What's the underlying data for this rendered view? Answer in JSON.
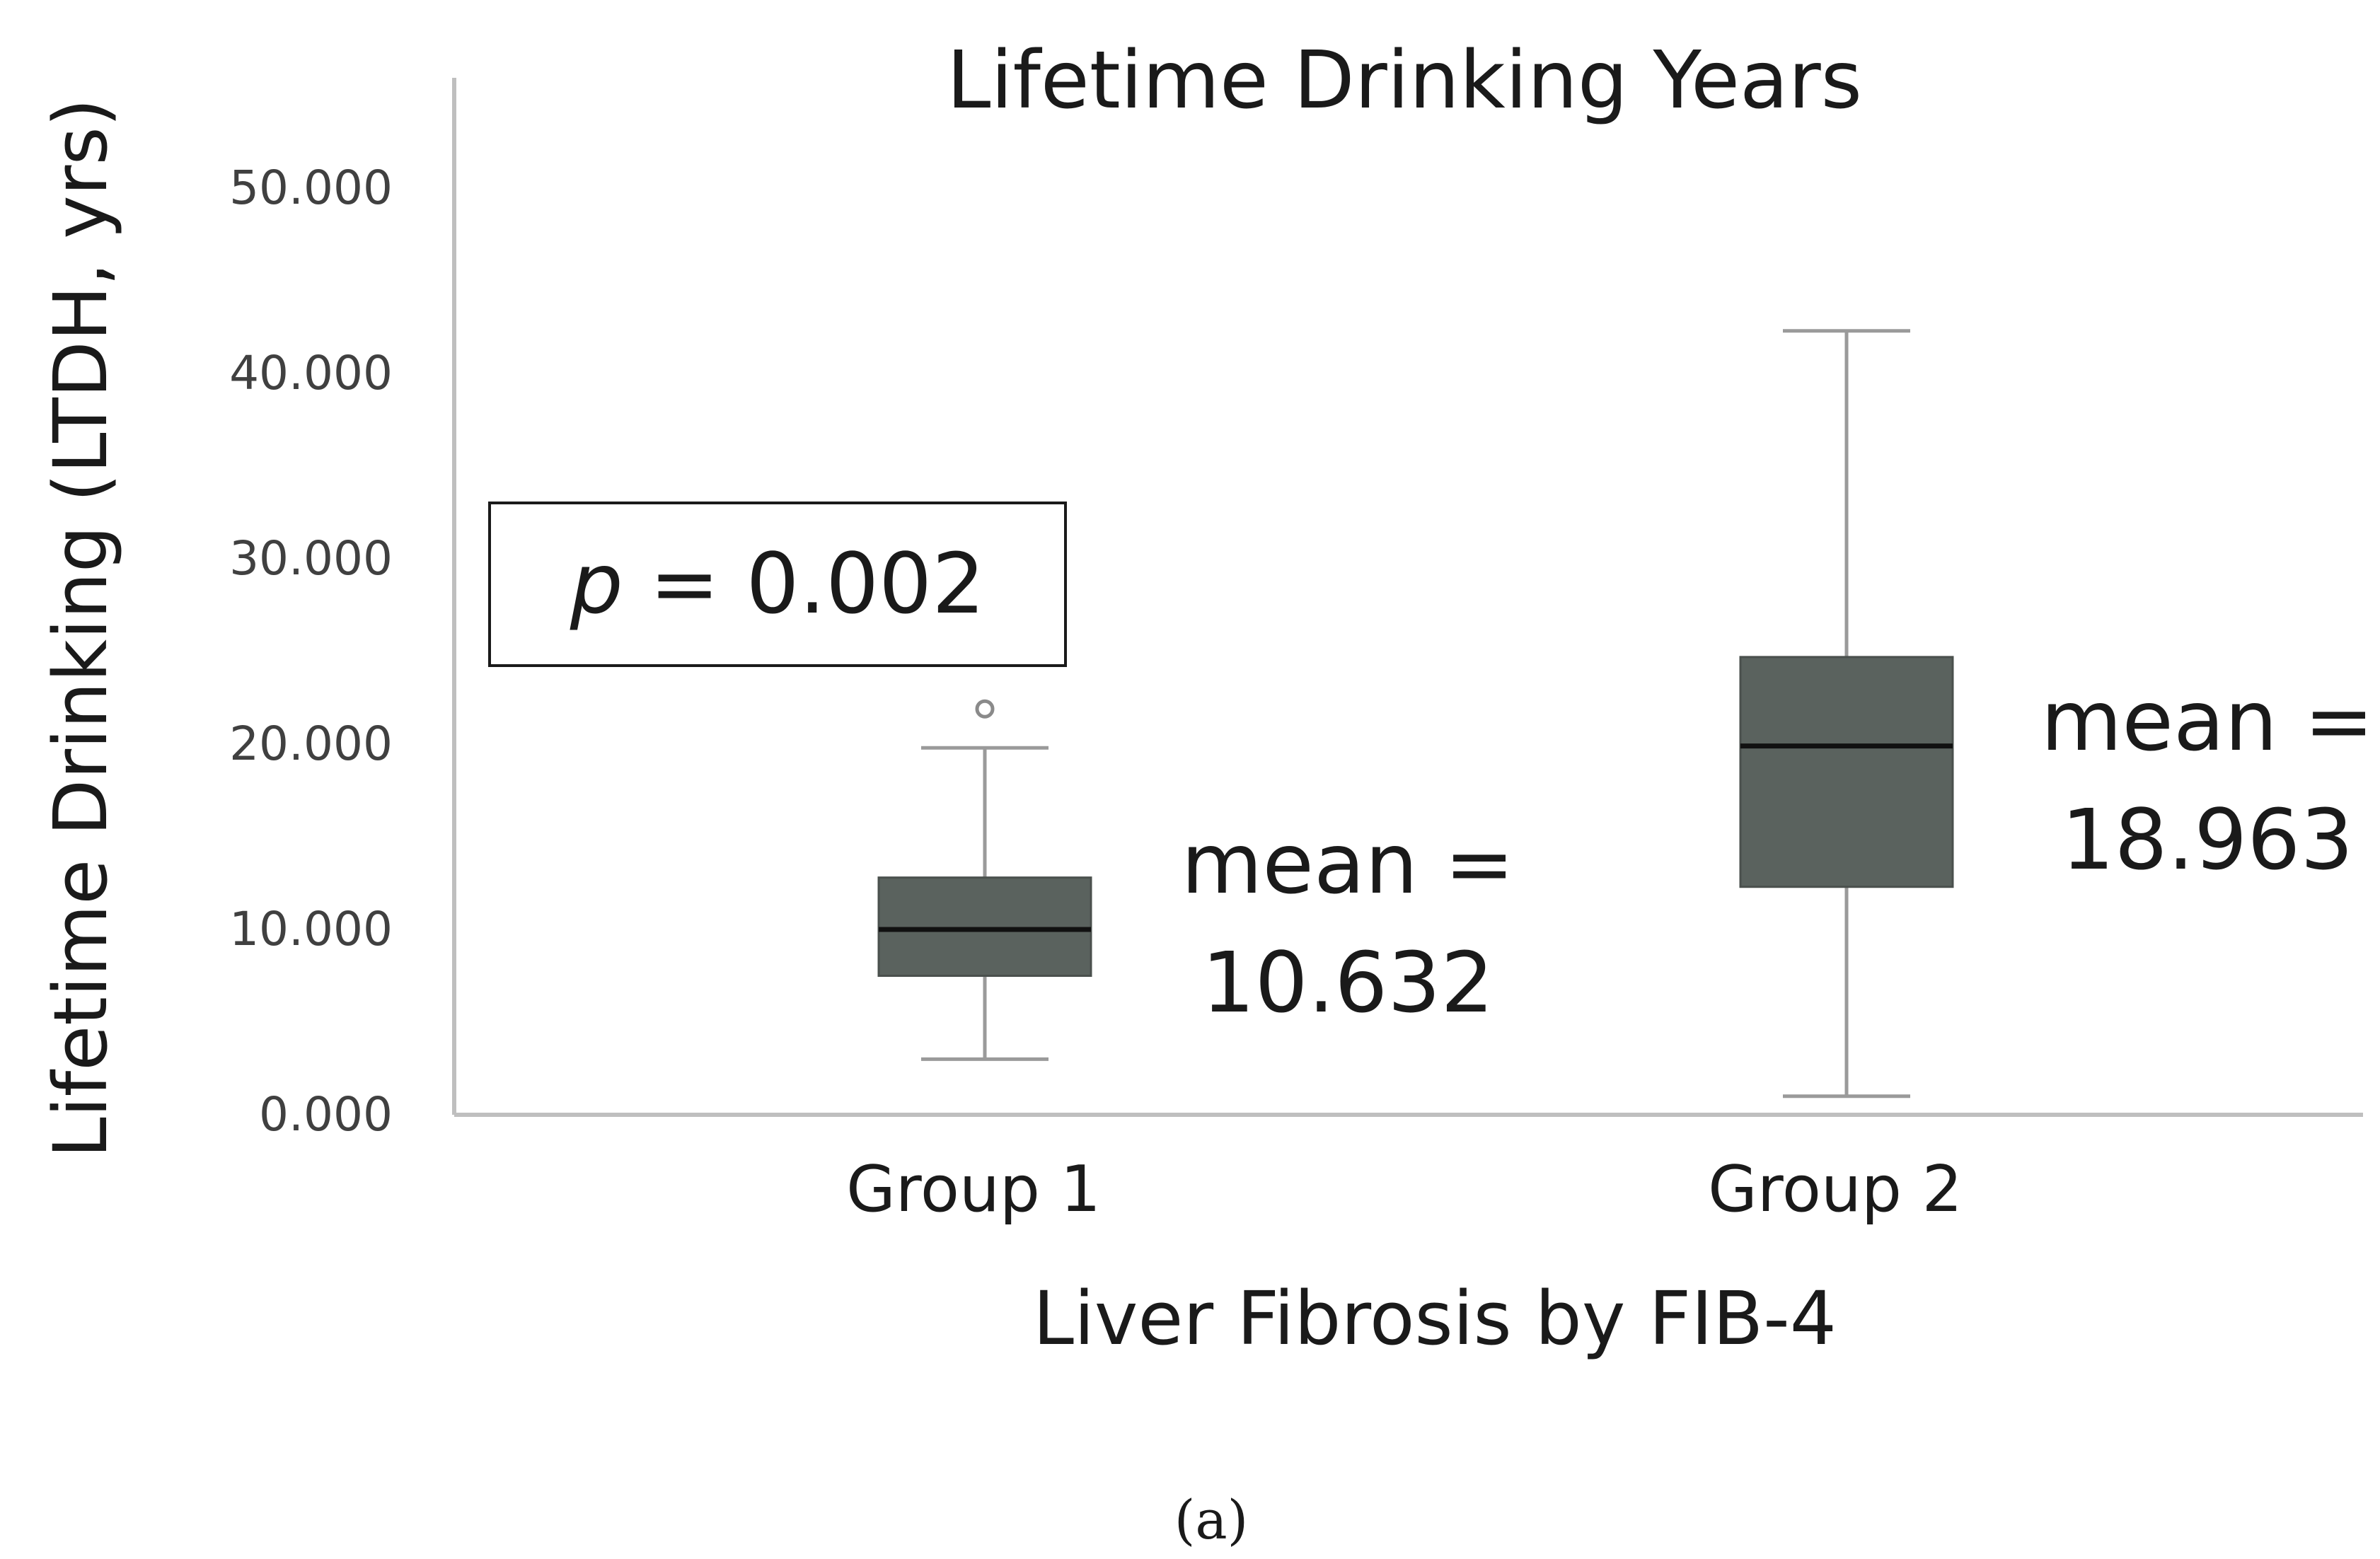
{
  "chart_data": {
    "type": "boxplot",
    "title": "Lifetime Drinking Years",
    "ylabel": "Lifetime Drinking (LTDH, yrs)",
    "xlabel": "Liver Fibrosis by FIB-4",
    "ylim": [
      0,
      55
    ],
    "yticks": [
      0,
      10,
      20,
      30,
      40,
      50
    ],
    "ytick_labels": [
      "0.000",
      "10.000",
      "20.000",
      "30.000",
      "40.000",
      "50.000"
    ],
    "grid": false,
    "box_color": "#5a625e",
    "categories": [
      "Group 1",
      "Group 2"
    ],
    "boxes": [
      {
        "category": "Group 1",
        "whisker_low": 3.0,
        "q1": 7.5,
        "median": 10.0,
        "q3": 12.8,
        "whisker_high": 19.8,
        "outliers": [
          21.9
        ],
        "mean_label": "mean =",
        "mean_value": "10.632"
      },
      {
        "category": "Group 2",
        "whisker_low": 1.0,
        "q1": 12.3,
        "median": 19.9,
        "q3": 24.7,
        "whisker_high": 42.3,
        "outliers": [],
        "mean_label": "mean =",
        "mean_value": "18.963"
      }
    ],
    "annotation": {
      "p_symbol": "p",
      "p_rest": " = 0.002"
    }
  },
  "caption": "(a)"
}
